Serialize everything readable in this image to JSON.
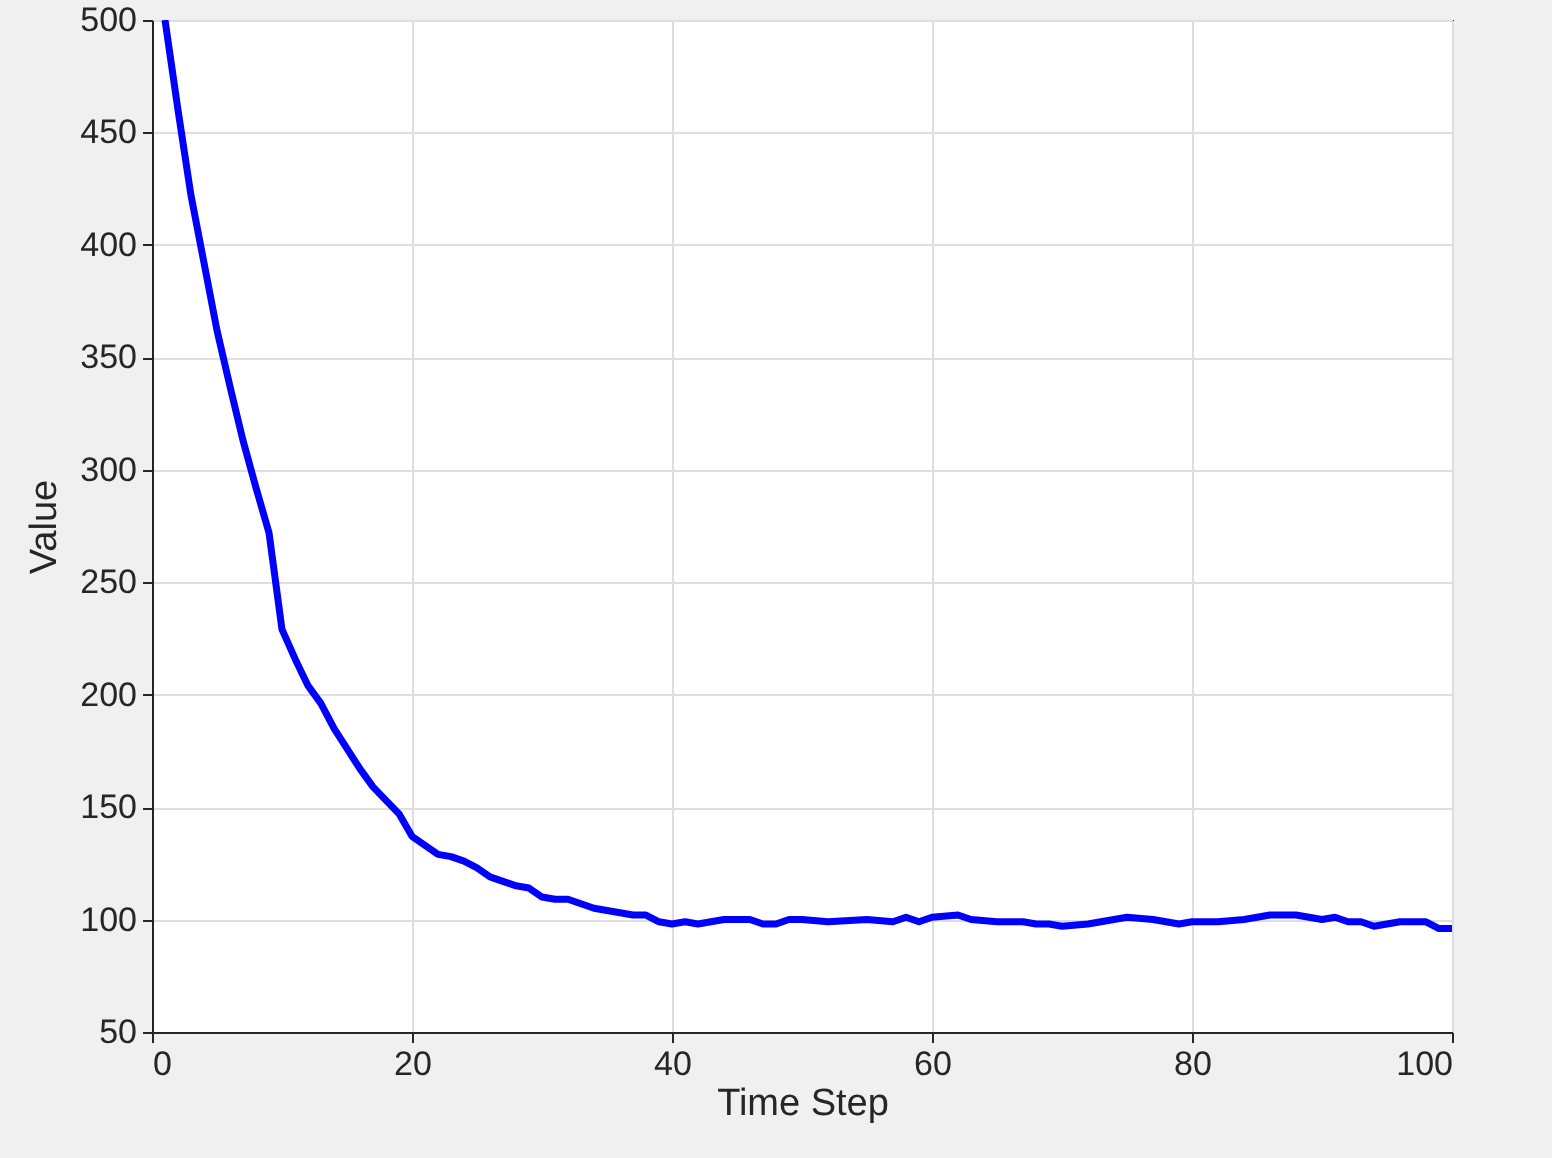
{
  "chart_data": {
    "type": "line",
    "xlabel": "Time Step",
    "ylabel": "Value",
    "x": [
      1,
      2,
      3,
      4,
      5,
      6,
      7,
      8,
      9,
      10,
      11,
      12,
      13,
      14,
      15,
      16,
      17,
      18,
      19,
      20,
      21,
      22,
      23,
      24,
      25,
      26,
      27,
      28,
      29,
      30,
      31,
      32,
      33,
      34,
      35,
      36,
      37,
      38,
      39,
      40,
      41,
      42,
      43,
      44,
      45,
      46,
      47,
      48,
      49,
      50,
      52,
      55,
      57,
      58,
      59,
      60,
      62,
      63,
      65,
      67,
      68,
      69,
      70,
      72,
      74,
      75,
      77,
      79,
      80,
      82,
      84,
      86,
      88,
      90,
      91,
      92,
      93,
      94,
      96,
      98,
      99,
      100
    ],
    "series": [
      {
        "color": "#0000ff",
        "values": [
          500,
          460,
          422,
          392,
          362,
          337,
          313,
          292,
          272,
          229,
          216,
          204,
          196,
          185,
          176,
          167,
          159,
          153,
          147,
          137,
          133,
          129,
          128,
          126,
          123,
          119,
          117,
          115,
          114,
          110,
          109,
          109,
          107,
          105,
          104,
          103,
          102,
          102,
          99,
          98,
          99,
          98,
          99,
          100,
          100,
          100,
          98,
          98,
          100,
          100,
          99,
          100,
          99,
          101,
          99,
          101,
          102,
          100,
          99,
          99,
          98,
          98,
          97,
          98,
          100,
          101,
          100,
          98,
          99,
          99,
          100,
          102,
          102,
          100,
          101,
          99,
          99,
          97,
          99,
          99,
          96,
          96
        ]
      }
    ],
    "xlim": [
      0,
      100
    ],
    "ylim": [
      50,
      500
    ],
    "xticks": [
      0,
      20,
      40,
      60,
      80,
      100
    ],
    "yticks": [
      50,
      100,
      150,
      200,
      250,
      300,
      350,
      400,
      450,
      500
    ],
    "grid": true,
    "marker": "none",
    "line_style": "solid"
  }
}
